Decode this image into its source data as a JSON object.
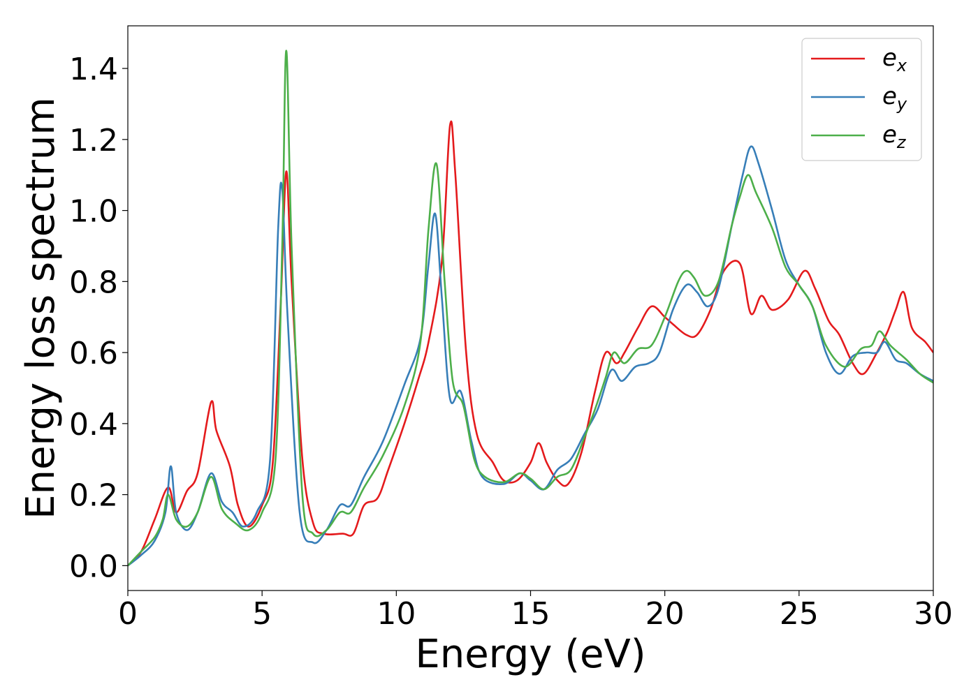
{
  "chart_data": {
    "type": "line",
    "title": "",
    "xlabel": "Energy (eV)",
    "ylabel": "Energy loss spectrum",
    "xlim": [
      0,
      30
    ],
    "ylim": [
      -0.07,
      1.52
    ],
    "xticks": [
      0,
      5,
      10,
      15,
      20,
      25,
      30
    ],
    "xtick_labels": [
      "0",
      "5",
      "10",
      "15",
      "20",
      "25",
      "30"
    ],
    "yticks": [
      0.0,
      0.2,
      0.4,
      0.6,
      0.8,
      1.0,
      1.2,
      1.4
    ],
    "ytick_labels": [
      "0.0",
      "0.2",
      "0.4",
      "0.6",
      "0.8",
      "1.0",
      "1.2",
      "1.4"
    ],
    "grid": false,
    "legend_position": "top-right",
    "series": [
      {
        "name": "e",
        "subscript": "x",
        "color": "#e41a1c",
        "points": [
          [
            0,
            0
          ],
          [
            0.5,
            0.04
          ],
          [
            1.0,
            0.13
          ],
          [
            1.5,
            0.22
          ],
          [
            1.8,
            0.15
          ],
          [
            2.2,
            0.21
          ],
          [
            2.6,
            0.26
          ],
          [
            3.1,
            0.46
          ],
          [
            3.3,
            0.38
          ],
          [
            3.8,
            0.28
          ],
          [
            4.1,
            0.17
          ],
          [
            4.5,
            0.11
          ],
          [
            5.0,
            0.17
          ],
          [
            5.4,
            0.29
          ],
          [
            5.7,
            0.75
          ],
          [
            5.9,
            1.11
          ],
          [
            6.1,
            0.8
          ],
          [
            6.5,
            0.3
          ],
          [
            6.9,
            0.12
          ],
          [
            7.3,
            0.09
          ],
          [
            8.0,
            0.09
          ],
          [
            8.4,
            0.09
          ],
          [
            8.8,
            0.17
          ],
          [
            9.3,
            0.19
          ],
          [
            9.7,
            0.27
          ],
          [
            10.3,
            0.4
          ],
          [
            10.8,
            0.52
          ],
          [
            11.2,
            0.63
          ],
          [
            11.7,
            0.86
          ],
          [
            12.0,
            1.24
          ],
          [
            12.2,
            1.1
          ],
          [
            12.6,
            0.6
          ],
          [
            13.0,
            0.37
          ],
          [
            13.6,
            0.29
          ],
          [
            14.0,
            0.24
          ],
          [
            14.5,
            0.24
          ],
          [
            15.0,
            0.29
          ],
          [
            15.3,
            0.345
          ],
          [
            15.6,
            0.29
          ],
          [
            16.0,
            0.24
          ],
          [
            16.4,
            0.23
          ],
          [
            16.9,
            0.32
          ],
          [
            17.4,
            0.49
          ],
          [
            17.8,
            0.6
          ],
          [
            18.2,
            0.57
          ],
          [
            18.5,
            0.6
          ],
          [
            19.0,
            0.67
          ],
          [
            19.5,
            0.73
          ],
          [
            20.0,
            0.7
          ],
          [
            20.3,
            0.68
          ],
          [
            20.8,
            0.65
          ],
          [
            21.2,
            0.65
          ],
          [
            21.7,
            0.72
          ],
          [
            22.2,
            0.83
          ],
          [
            22.8,
            0.85
          ],
          [
            23.2,
            0.71
          ],
          [
            23.6,
            0.76
          ],
          [
            24.0,
            0.72
          ],
          [
            24.6,
            0.75
          ],
          [
            25.2,
            0.83
          ],
          [
            25.6,
            0.78
          ],
          [
            26.1,
            0.69
          ],
          [
            26.5,
            0.65
          ],
          [
            27.0,
            0.57
          ],
          [
            27.4,
            0.54
          ],
          [
            27.9,
            0.6
          ],
          [
            28.3,
            0.66
          ],
          [
            28.6,
            0.72
          ],
          [
            28.9,
            0.77
          ],
          [
            29.2,
            0.67
          ],
          [
            29.7,
            0.63
          ],
          [
            30.0,
            0.6
          ]
        ]
      },
      {
        "name": "e",
        "subscript": "y",
        "color": "#377eb8",
        "points": [
          [
            0,
            0
          ],
          [
            0.5,
            0.03
          ],
          [
            1.0,
            0.07
          ],
          [
            1.4,
            0.15
          ],
          [
            1.6,
            0.28
          ],
          [
            1.8,
            0.15
          ],
          [
            2.2,
            0.1
          ],
          [
            2.6,
            0.15
          ],
          [
            3.1,
            0.26
          ],
          [
            3.5,
            0.18
          ],
          [
            3.9,
            0.15
          ],
          [
            4.3,
            0.11
          ],
          [
            4.8,
            0.15
          ],
          [
            5.3,
            0.3
          ],
          [
            5.6,
            0.95
          ],
          [
            5.75,
            1.06
          ],
          [
            5.95,
            0.7
          ],
          [
            6.4,
            0.15
          ],
          [
            6.9,
            0.065
          ],
          [
            7.4,
            0.1
          ],
          [
            7.9,
            0.17
          ],
          [
            8.3,
            0.17
          ],
          [
            8.8,
            0.25
          ],
          [
            9.5,
            0.35
          ],
          [
            10.3,
            0.51
          ],
          [
            10.9,
            0.64
          ],
          [
            11.2,
            0.85
          ],
          [
            11.45,
            0.99
          ],
          [
            11.7,
            0.75
          ],
          [
            12.0,
            0.47
          ],
          [
            12.4,
            0.49
          ],
          [
            12.8,
            0.35
          ],
          [
            13.2,
            0.25
          ],
          [
            14.0,
            0.23
          ],
          [
            14.6,
            0.26
          ],
          [
            15.0,
            0.24
          ],
          [
            15.5,
            0.215
          ],
          [
            16.0,
            0.27
          ],
          [
            16.5,
            0.3
          ],
          [
            17.0,
            0.37
          ],
          [
            17.5,
            0.44
          ],
          [
            18.0,
            0.55
          ],
          [
            18.4,
            0.52
          ],
          [
            18.9,
            0.56
          ],
          [
            19.4,
            0.57
          ],
          [
            19.8,
            0.6
          ],
          [
            20.3,
            0.72
          ],
          [
            20.8,
            0.79
          ],
          [
            21.2,
            0.77
          ],
          [
            21.6,
            0.73
          ],
          [
            22.0,
            0.78
          ],
          [
            22.5,
            0.96
          ],
          [
            22.9,
            1.1
          ],
          [
            23.2,
            1.18
          ],
          [
            23.5,
            1.13
          ],
          [
            24.0,
            1.0
          ],
          [
            24.5,
            0.86
          ],
          [
            25.0,
            0.79
          ],
          [
            25.5,
            0.73
          ],
          [
            26.0,
            0.6
          ],
          [
            26.5,
            0.54
          ],
          [
            27.0,
            0.59
          ],
          [
            27.5,
            0.6
          ],
          [
            27.9,
            0.6
          ],
          [
            28.2,
            0.63
          ],
          [
            28.6,
            0.58
          ],
          [
            29.0,
            0.57
          ],
          [
            29.5,
            0.54
          ],
          [
            30.0,
            0.52
          ]
        ]
      },
      {
        "name": "e",
        "subscript": "z",
        "color": "#4daf4a",
        "points": [
          [
            0,
            0
          ],
          [
            0.5,
            0.04
          ],
          [
            1.0,
            0.08
          ],
          [
            1.3,
            0.13
          ],
          [
            1.5,
            0.2
          ],
          [
            1.8,
            0.13
          ],
          [
            2.2,
            0.11
          ],
          [
            2.6,
            0.15
          ],
          [
            3.1,
            0.25
          ],
          [
            3.5,
            0.16
          ],
          [
            4.0,
            0.12
          ],
          [
            4.5,
            0.1
          ],
          [
            5.0,
            0.15
          ],
          [
            5.5,
            0.3
          ],
          [
            5.75,
            0.9
          ],
          [
            5.9,
            1.45
          ],
          [
            6.1,
            0.9
          ],
          [
            6.5,
            0.2
          ],
          [
            6.9,
            0.09
          ],
          [
            7.4,
            0.1
          ],
          [
            7.9,
            0.15
          ],
          [
            8.3,
            0.15
          ],
          [
            8.8,
            0.22
          ],
          [
            9.5,
            0.31
          ],
          [
            10.3,
            0.45
          ],
          [
            10.9,
            0.63
          ],
          [
            11.2,
            0.95
          ],
          [
            11.5,
            1.13
          ],
          [
            11.8,
            0.8
          ],
          [
            12.1,
            0.52
          ],
          [
            12.5,
            0.45
          ],
          [
            12.9,
            0.3
          ],
          [
            13.3,
            0.25
          ],
          [
            14.0,
            0.235
          ],
          [
            14.6,
            0.26
          ],
          [
            15.0,
            0.245
          ],
          [
            15.5,
            0.215
          ],
          [
            16.0,
            0.25
          ],
          [
            16.5,
            0.27
          ],
          [
            17.0,
            0.36
          ],
          [
            17.4,
            0.44
          ],
          [
            17.8,
            0.53
          ],
          [
            18.1,
            0.6
          ],
          [
            18.5,
            0.57
          ],
          [
            19.0,
            0.61
          ],
          [
            19.5,
            0.62
          ],
          [
            20.0,
            0.7
          ],
          [
            20.5,
            0.8
          ],
          [
            20.8,
            0.83
          ],
          [
            21.1,
            0.81
          ],
          [
            21.5,
            0.76
          ],
          [
            22.0,
            0.8
          ],
          [
            22.5,
            0.96
          ],
          [
            22.8,
            1.04
          ],
          [
            23.1,
            1.1
          ],
          [
            23.4,
            1.05
          ],
          [
            24.0,
            0.95
          ],
          [
            24.5,
            0.84
          ],
          [
            25.0,
            0.79
          ],
          [
            25.5,
            0.73
          ],
          [
            26.0,
            0.62
          ],
          [
            26.7,
            0.56
          ],
          [
            27.3,
            0.61
          ],
          [
            27.7,
            0.62
          ],
          [
            28.0,
            0.66
          ],
          [
            28.4,
            0.62
          ],
          [
            29.0,
            0.58
          ],
          [
            29.5,
            0.54
          ],
          [
            30.0,
            0.515
          ]
        ]
      }
    ]
  }
}
